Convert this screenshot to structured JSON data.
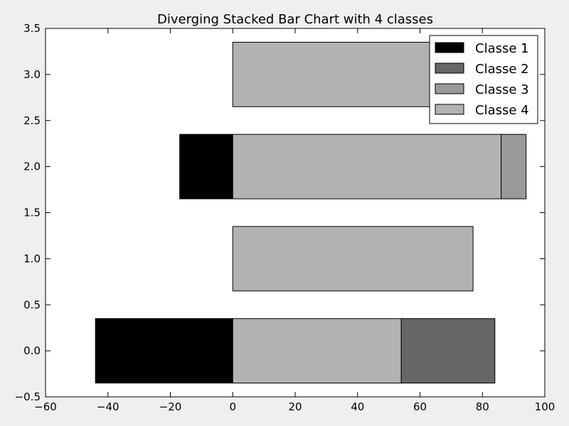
{
  "chart_data": {
    "type": "bar",
    "orientation": "horizontal",
    "stacked": "diverging",
    "title": "Diverging Stacked Bar Chart with 4 classes",
    "xlabel": "",
    "ylabel": "",
    "xlim": [
      -60,
      100
    ],
    "ylim": [
      -0.5,
      3.5
    ],
    "xticks": [
      -60,
      -40,
      -20,
      0,
      20,
      40,
      60,
      80,
      100
    ],
    "xtick_labels": [
      "−60",
      "−40",
      "−20",
      "0",
      "20",
      "40",
      "60",
      "80",
      "100"
    ],
    "yticks": [
      -0.5,
      0.0,
      0.5,
      1.0,
      1.5,
      2.0,
      2.5,
      3.0,
      3.5
    ],
    "ytick_labels": [
      "−0.5",
      "0.0",
      "0.5",
      "1.0",
      "1.5",
      "2.0",
      "2.5",
      "3.0",
      "3.5"
    ],
    "bar_height": 0.7,
    "grid": false,
    "legend_position": "top-right",
    "series": [
      {
        "name": "Classe 1",
        "color": "#000000",
        "values": [
          -44,
          0,
          -17,
          0
        ]
      },
      {
        "name": "Classe 2",
        "color": "#666666",
        "values": [
          30,
          0,
          0,
          0
        ]
      },
      {
        "name": "Classe 3",
        "color": "#999999",
        "values": [
          0,
          0,
          8,
          0
        ]
      },
      {
        "name": "Classe 4",
        "color": "#b2b2b2",
        "values": [
          54,
          77,
          86,
          65
        ]
      }
    ],
    "stack_order_positive": [
      3,
      1,
      2
    ],
    "categories": [
      0,
      1,
      2,
      3
    ]
  }
}
